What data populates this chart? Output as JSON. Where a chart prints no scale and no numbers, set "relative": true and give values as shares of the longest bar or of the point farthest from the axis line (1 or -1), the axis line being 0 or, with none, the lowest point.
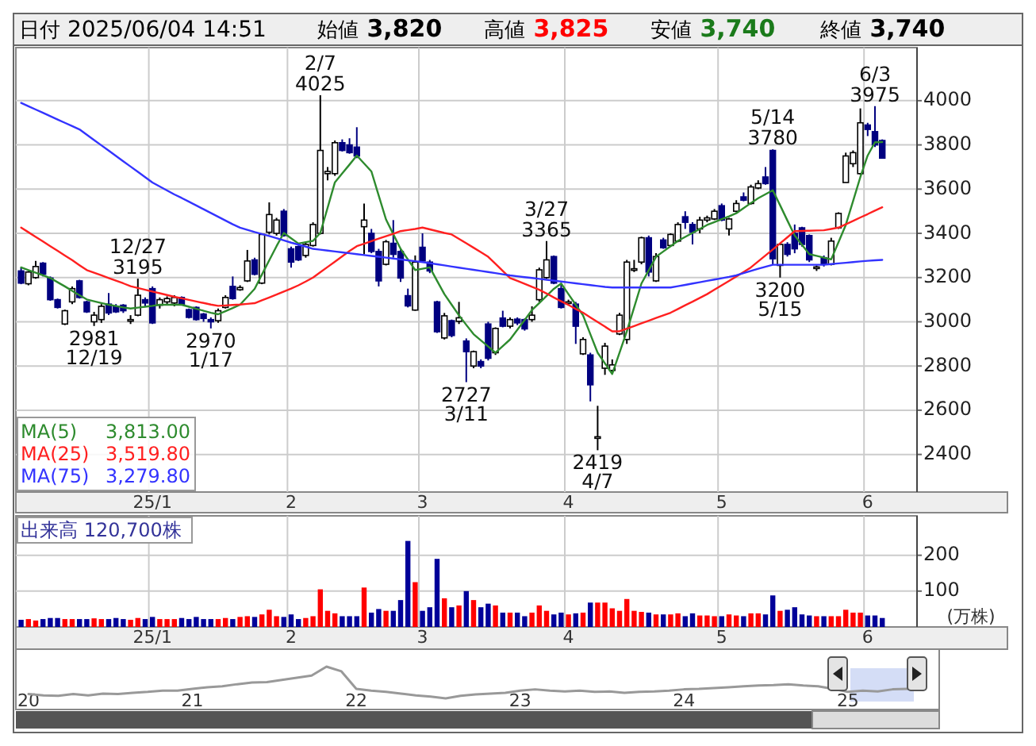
{
  "chart_data": [
    {
      "type": "candlestick",
      "colors": [
        "#000080",
        "#ffffff",
        "#ffffff",
        "#000080",
        "#000080",
        "#000080",
        "#ffffff",
        "#ffffff",
        "#000080",
        "#000080",
        "#ffffff",
        "#ffffff",
        "#000080",
        "#000080",
        "#000080",
        "#ffffff",
        "#ffffff",
        "#000080",
        "#000080",
        "#ffffff",
        "#ffffff",
        "#ffffff",
        "#000080",
        "#000080",
        "#000080",
        "#000080",
        "#000080",
        "#ffffff",
        "#ffffff",
        "#000080",
        "#ffffff",
        "#ffffff",
        "#000080",
        "#ffffff",
        "#ffffff",
        "#ffffff",
        "#000080",
        "#000080",
        "#000080",
        "#ffffff",
        "#ffffff",
        "#ffffff",
        "#ffffff",
        "#ffffff",
        "#000080",
        "#000080",
        "#000080",
        "#ffffff",
        "#000080",
        "#000080",
        "#ffffff",
        "#000080",
        "#000080",
        "#000080",
        "#ffffff",
        "#000080",
        "#000080",
        "#000080",
        "#ffffff",
        "#000080",
        "#ffffff",
        "#000080",
        "#ffffff",
        "#000080",
        "#000080",
        "#ffffff",
        "#000080",
        "#ffffff",
        "#000080",
        "#000080",
        "#ffffff",
        "#ffffff",
        "#ffffff",
        "#000080",
        "#000080",
        "#ffffff",
        "#000080",
        "#ffffff",
        "#000080",
        "#ffffff",
        "#ffffff",
        "#ffffff",
        "#ffffff",
        "#ffffff",
        "#ffffff",
        "#ffffff",
        "#000080",
        "#ffffff",
        "#000080",
        "#ffffff",
        "#ffffff",
        "#000080",
        "#000080",
        "#ffffff",
        "#ffffff",
        "#ffffff",
        "#000080",
        "#ffffff",
        "#ffffff",
        "#000080",
        "#ffffff",
        "#ffffff",
        "#000080",
        "#000080",
        "#ffffff",
        "#000080",
        "#000080",
        "#000080",
        "#000080",
        "#ffffff",
        "#000080",
        "#ffffff",
        "#ffffff",
        "#ffffff",
        "#ffffff",
        "#ffffff",
        "#000080",
        "#000080",
        "#000080"
      ],
      "legend": "bottom left",
      "grid": true,
      "ylim": [
        2230,
        4240
      ],
      "yticks": [
        2400,
        2600,
        2800,
        3000,
        3200,
        3400,
        3600,
        3800,
        4000
      ],
      "categories": [
        null,
        null,
        null,
        null,
        null,
        null,
        null,
        null,
        null,
        null,
        null,
        null,
        null,
        null,
        null,
        null,
        null,
        null,
        "25/1",
        null,
        null,
        null,
        null,
        null,
        null,
        null,
        null,
        null,
        null,
        null,
        null,
        null,
        null,
        null,
        null,
        null,
        null,
        "2",
        null,
        null,
        null,
        null,
        null,
        null,
        null,
        null,
        null,
        null,
        null,
        null,
        null,
        null,
        null,
        null,
        null,
        "3",
        null,
        null,
        null,
        null,
        null,
        null,
        null,
        null,
        null,
        null,
        null,
        null,
        null,
        null,
        null,
        null,
        null,
        null,
        null,
        "4",
        null,
        null,
        null,
        null,
        null,
        null,
        null,
        null,
        null,
        null,
        null,
        null,
        null,
        null,
        null,
        null,
        null,
        null,
        null,
        null,
        "5",
        null,
        null,
        null,
        null,
        null,
        null,
        null,
        null,
        null,
        null,
        null,
        null,
        null,
        null,
        null,
        null,
        null,
        null,
        null,
        "6",
        null,
        null
      ],
      "ohlc": [
        [
          3230,
          3245,
          3170,
          3175
        ],
        [
          3172,
          3230,
          3165,
          3225
        ],
        [
          3200,
          3275,
          3195,
          3250
        ],
        [
          3265,
          3270,
          3205,
          3215
        ],
        [
          3198,
          3205,
          3095,
          3100
        ],
        [
          3100,
          3105,
          3060,
          3065
        ],
        [
          2990,
          3055,
          2985,
          3050
        ],
        [
          3090,
          3160,
          3080,
          3150
        ],
        [
          3185,
          3190,
          3105,
          3110
        ],
        [
          3090,
          3095,
          3040,
          3045
        ],
        [
          3000,
          3045,
          2981,
          3030
        ],
        [
          3010,
          3080,
          2995,
          3070
        ],
        [
          3080,
          3130,
          3030,
          3040
        ],
        [
          3070,
          3080,
          3040,
          3045
        ],
        [
          3075,
          3080,
          3040,
          3050
        ],
        [
          3005,
          3030,
          2990,
          3010
        ],
        [
          3030,
          3195,
          3025,
          3120
        ],
        [
          3100,
          3110,
          3070,
          3085
        ],
        [
          3150,
          3160,
          2990,
          2995
        ],
        [
          3075,
          3110,
          3060,
          3100
        ],
        [
          3090,
          3115,
          3080,
          3105
        ],
        [
          3085,
          3120,
          3070,
          3110
        ],
        [
          3110,
          3115,
          3075,
          3080
        ],
        [
          3055,
          3060,
          3015,
          3020
        ],
        [
          3065,
          3070,
          3005,
          3010
        ],
        [
          3035,
          3040,
          3000,
          3015
        ],
        [
          3010,
          3020,
          2970,
          3000
        ],
        [
          3005,
          3060,
          2995,
          3050
        ],
        [
          3065,
          3120,
          3060,
          3110
        ],
        [
          3160,
          3205,
          3100,
          3105
        ],
        [
          3145,
          3165,
          3140,
          3155
        ],
        [
          3185,
          3325,
          3180,
          3275
        ],
        [
          3280,
          3290,
          3210,
          3215
        ],
        [
          3175,
          3400,
          3170,
          3395
        ],
        [
          3405,
          3540,
          3395,
          3485
        ],
        [
          3400,
          3470,
          3390,
          3460
        ],
        [
          3500,
          3510,
          3385,
          3390
        ],
        [
          3330,
          3340,
          3245,
          3270
        ],
        [
          3340,
          3345,
          3275,
          3280
        ],
        [
          3300,
          3360,
          3290,
          3350
        ],
        [
          3345,
          3450,
          3340,
          3440
        ],
        [
          3400,
          4025,
          3395,
          3775
        ],
        [
          3670,
          3700,
          3640,
          3680
        ],
        [
          3670,
          3820,
          3660,
          3810
        ],
        [
          3810,
          3825,
          3770,
          3775
        ],
        [
          3800,
          3830,
          3760,
          3765
        ],
        [
          3790,
          3880,
          3740,
          3750
        ],
        [
          3430,
          3535,
          3305,
          3460
        ],
        [
          3400,
          3420,
          3310,
          3318
        ],
        [
          3318,
          3330,
          3160,
          3185
        ],
        [
          3260,
          3370,
          3255,
          3362
        ],
        [
          3355,
          3460,
          3290,
          3305
        ],
        [
          3318,
          3330,
          3180,
          3198
        ],
        [
          3118,
          3150,
          3065,
          3072
        ],
        [
          3053,
          3300,
          3050,
          3270
        ],
        [
          3337,
          3400,
          3270,
          3275
        ],
        [
          3270,
          3280,
          3220,
          3230
        ],
        [
          3090,
          3095,
          2950,
          2955
        ],
        [
          2927,
          3040,
          2920,
          3027
        ],
        [
          3005,
          3010,
          2930,
          2938
        ],
        [
          3002,
          3090,
          2990,
          3018
        ],
        [
          2913,
          2925,
          2727,
          2865
        ],
        [
          2800,
          2870,
          2790,
          2865
        ],
        [
          2820,
          2830,
          2790,
          2800
        ],
        [
          2990,
          3000,
          2825,
          2835
        ],
        [
          2860,
          2975,
          2850,
          2970
        ],
        [
          3017,
          3050,
          2975,
          2980
        ],
        [
          2980,
          3020,
          2970,
          3010
        ],
        [
          3012,
          3020,
          2985,
          2995
        ],
        [
          3010,
          3015,
          2960,
          2968
        ],
        [
          3010,
          3070,
          3000,
          3030
        ],
        [
          3100,
          3245,
          3090,
          3235
        ],
        [
          3200,
          3365,
          3195,
          3280
        ],
        [
          3295,
          3300,
          3170,
          3175
        ],
        [
          3150,
          3170,
          3060,
          3065
        ],
        [
          3085,
          3100,
          3075,
          3090
        ],
        [
          3080,
          3090,
          2900,
          2980
        ],
        [
          2855,
          2930,
          2850,
          2920
        ],
        [
          2850,
          2860,
          2640,
          2715
        ],
        [
          2475,
          2620,
          2419,
          2480
        ],
        [
          2790,
          2905,
          2760,
          2890
        ],
        [
          2780,
          2830,
          2770,
          2805
        ],
        [
          2945,
          3040,
          2940,
          3030
        ],
        [
          2920,
          3280,
          2900,
          3270
        ],
        [
          3235,
          3280,
          3225,
          3240
        ],
        [
          3270,
          3385,
          3260,
          3380
        ],
        [
          3380,
          3390,
          3205,
          3225
        ],
        [
          3185,
          3310,
          3180,
          3295
        ],
        [
          3370,
          3380,
          3330,
          3335
        ],
        [
          3345,
          3400,
          3340,
          3395
        ],
        [
          3365,
          3450,
          3360,
          3440
        ],
        [
          3475,
          3500,
          3420,
          3450
        ],
        [
          3440,
          3450,
          3350,
          3405
        ],
        [
          3420,
          3475,
          3400,
          3460
        ],
        [
          3460,
          3480,
          3450,
          3470
        ],
        [
          3465,
          3510,
          3460,
          3500
        ],
        [
          3525,
          3535,
          3455,
          3460
        ],
        [
          3420,
          3470,
          3390,
          3465
        ],
        [
          3500,
          3550,
          3495,
          3535
        ],
        [
          3565,
          3585,
          3545,
          3550
        ],
        [
          3535,
          3620,
          3530,
          3610
        ],
        [
          3605,
          3640,
          3600,
          3625
        ],
        [
          3655,
          3700,
          3620,
          3625
        ],
        [
          3775,
          3780,
          3260,
          3285
        ],
        [
          3255,
          3355,
          3200,
          3350
        ],
        [
          3350,
          3360,
          3295,
          3305
        ],
        [
          3400,
          3440,
          3310,
          3330
        ],
        [
          3425,
          3430,
          3340,
          3350
        ],
        [
          3390,
          3395,
          3270,
          3280
        ],
        [
          3245,
          3255,
          3230,
          3248
        ],
        [
          3290,
          3300,
          3250,
          3260
        ],
        [
          3260,
          3380,
          3255,
          3365
        ],
        [
          3425,
          3495,
          3420,
          3490
        ],
        [
          3630,
          3765,
          3630,
          3750
        ],
        [
          3715,
          3775,
          3700,
          3765
        ],
        [
          3670,
          3965,
          3665,
          3900
        ],
        [
          3890,
          3900,
          3840,
          3870
        ],
        [
          3860,
          3975,
          3790,
          3800
        ],
        [
          3820,
          3825,
          3740,
          3740
        ]
      ],
      "series": [
        {
          "type": "line",
          "name": "MA(5) 3,813.00",
          "color": "#2e8b2e",
          "values": [
            3246,
            3234,
            3222,
            3210,
            3198,
            3179,
            3160,
            3140,
            3120,
            3101,
            3093,
            3085,
            3077,
            3071,
            3065,
            3060,
            3064,
            3068,
            3072,
            3077,
            3077,
            3077,
            3077,
            3068,
            3059,
            3050,
            3041,
            3034,
            3048,
            3062,
            3077,
            3113,
            3149,
            3214,
            3278,
            3342,
            3402,
            3378,
            3354,
            3360,
            3366,
            3402,
            3516,
            3631,
            3671,
            3711,
            3752,
            3716,
            3680,
            3571,
            3463,
            3396,
            3330,
            3282,
            3234,
            3240,
            3246,
            3185,
            3125,
            3077,
            3029,
            2986,
            2944,
            2916,
            2888,
            2860,
            2890,
            2920,
            2964,
            3008,
            3053,
            3085,
            3117,
            3149,
            3173,
            3125,
            3077,
            3029,
            2944,
            2860,
            2812,
            2764,
            2860,
            2957,
            3065,
            3173,
            3233,
            3294,
            3318,
            3342,
            3366,
            3384,
            3402,
            3420,
            3438,
            3451,
            3464,
            3477,
            3491,
            3514,
            3537,
            3559,
            3577,
            3595,
            3527,
            3458,
            3390,
            3348,
            3306,
            3298,
            3290,
            3282,
            3360,
            3438,
            3546,
            3655,
            3752,
            3812,
            3813
          ]
        },
        {
          "type": "line",
          "name": "MA(25) 3,519.80",
          "color": "#ff2020",
          "values": [
            3426,
            3405,
            3384,
            3363,
            3342,
            3321,
            3300,
            3279,
            3256,
            3234,
            3222,
            3210,
            3198,
            3186,
            3174,
            3161,
            3153,
            3145,
            3137,
            3129,
            3121,
            3113,
            3106,
            3099,
            3092,
            3085,
            3078,
            3072,
            3074,
            3076,
            3078,
            3081,
            3084,
            3097,
            3110,
            3123,
            3137,
            3150,
            3165,
            3182,
            3200,
            3224,
            3248,
            3272,
            3296,
            3320,
            3342,
            3353,
            3365,
            3376,
            3387,
            3398,
            3410,
            3415,
            3420,
            3426,
            3418,
            3410,
            3402,
            3395,
            3375,
            3355,
            3335,
            3315,
            3294,
            3262,
            3230,
            3198,
            3185,
            3172,
            3158,
            3145,
            3128,
            3110,
            3093,
            3076,
            3058,
            3041,
            3020,
            2999,
            2978,
            2957,
            2957,
            2969,
            2981,
            2993,
            3005,
            3017,
            3029,
            3041,
            3058,
            3075,
            3091,
            3108,
            3125,
            3145,
            3165,
            3185,
            3205,
            3225,
            3246,
            3273,
            3300,
            3327,
            3355,
            3382,
            3410,
            3411,
            3412,
            3413,
            3414,
            3420,
            3426,
            3441,
            3456,
            3472,
            3487,
            3503,
            3518
          ]
        },
        {
          "type": "line",
          "name": "MA(75) 3,279.80",
          "color": "#3333ff",
          "values": [
            3990,
            3975,
            3960,
            3945,
            3930,
            3915,
            3900,
            3885,
            3870,
            3846,
            3822,
            3798,
            3774,
            3750,
            3726,
            3702,
            3678,
            3654,
            3630,
            3612,
            3594,
            3576,
            3560,
            3543,
            3526,
            3509,
            3492,
            3475,
            3458,
            3441,
            3426,
            3416,
            3406,
            3397,
            3388,
            3378,
            3368,
            3358,
            3349,
            3340,
            3330,
            3326,
            3322,
            3318,
            3314,
            3310,
            3306,
            3302,
            3298,
            3294,
            3290,
            3286,
            3282,
            3278,
            3274,
            3270,
            3265,
            3260,
            3255,
            3250,
            3245,
            3240,
            3235,
            3230,
            3225,
            3220,
            3215,
            3210,
            3206,
            3202,
            3198,
            3194,
            3190,
            3186,
            3182,
            3178,
            3174,
            3170,
            3166,
            3162,
            3158,
            3155,
            3155,
            3155,
            3155,
            3155,
            3155,
            3155,
            3155,
            3155,
            3161,
            3167,
            3173,
            3179,
            3185,
            3191,
            3197,
            3203,
            3210,
            3220,
            3230,
            3240,
            3249,
            3258,
            3258,
            3258,
            3258,
            3258,
            3258,
            3258,
            3258,
            3261,
            3264,
            3267,
            3270,
            3273,
            3276,
            3278,
            3280
          ]
        }
      ],
      "annotations": [
        "日付 2025/06/04 14:51",
        "始値 3,820",
        "高値 3,825",
        "安値 3,740",
        "終値 3,740",
        {
          "text": "2981\n12/19",
          "y": 2981
        },
        {
          "text": "12/27\n3195",
          "y": 3195
        },
        {
          "text": "2970\n1/17",
          "y": 2970
        },
        {
          "text": "2/7\n4025",
          "y": 4025
        },
        {
          "text": "2727\n3/11",
          "y": 2727
        },
        {
          "text": "3/27\n3365",
          "y": 3365
        },
        {
          "text": "2419\n4/7",
          "y": 2419
        },
        {
          "text": "5/14\n3780",
          "y": 3780
        },
        {
          "text": "3200\n5/15",
          "y": 3200
        },
        {
          "text": "6/3\n3975",
          "y": 3975
        }
      ]
    },
    {
      "type": "bar",
      "title": "出来高 120,700株",
      "ylabel": "(万株)",
      "grid": true,
      "ylim": [
        0,
        310
      ],
      "yticks": [
        100,
        200
      ],
      "categories": [
        null,
        null,
        null,
        null,
        null,
        null,
        null,
        null,
        null,
        null,
        null,
        null,
        null,
        null,
        null,
        null,
        null,
        null,
        "25/1",
        null,
        null,
        null,
        null,
        null,
        null,
        null,
        null,
        null,
        null,
        null,
        null,
        null,
        null,
        null,
        null,
        null,
        null,
        "2",
        null,
        null,
        null,
        null,
        null,
        null,
        null,
        null,
        null,
        null,
        null,
        null,
        null,
        null,
        null,
        null,
        null,
        "3",
        null,
        null,
        null,
        null,
        null,
        null,
        null,
        null,
        null,
        null,
        null,
        null,
        null,
        null,
        null,
        null,
        null,
        null,
        null,
        "4",
        null,
        null,
        null,
        null,
        null,
        null,
        null,
        null,
        null,
        null,
        null,
        null,
        null,
        null,
        null,
        null,
        null,
        null,
        null,
        null,
        "5",
        null,
        null,
        null,
        null,
        null,
        null,
        null,
        null,
        null,
        null,
        null,
        null,
        null,
        null,
        null,
        null,
        null,
        null,
        null,
        "6",
        null,
        null
      ],
      "values": [
        20,
        22,
        18,
        22,
        25,
        25,
        22,
        22,
        22,
        22,
        24,
        22,
        22,
        25,
        22,
        20,
        25,
        22,
        28,
        22,
        22,
        22,
        25,
        22,
        28,
        22,
        22,
        22,
        25,
        22,
        28,
        30,
        28,
        35,
        48,
        30,
        28,
        35,
        22,
        25,
        30,
        105,
        45,
        38,
        30,
        30,
        30,
        110,
        40,
        50,
        45,
        45,
        75,
        240,
        125,
        45,
        55,
        190,
        80,
        55,
        60,
        100,
        75,
        55,
        65,
        60,
        40,
        40,
        40,
        30,
        40,
        60,
        45,
        35,
        40,
        35,
        38,
        40,
        68,
        68,
        68,
        52,
        45,
        78,
        45,
        42,
        40,
        35,
        35,
        35,
        38,
        30,
        38,
        32,
        32,
        30,
        30,
        35,
        32,
        30,
        38,
        38,
        35,
        88,
        45,
        48,
        55,
        35,
        32,
        30,
        30,
        30,
        30,
        48,
        40,
        40,
        32,
        32,
        25
      ],
      "colors": [
        "#000099",
        "#ff0000",
        "#ff0000",
        "#000099",
        "#000099",
        "#000099",
        "#ff0000",
        "#ff0000",
        "#000099",
        "#000099",
        "#ff0000",
        "#ff0000",
        "#000099",
        "#000099",
        "#000099",
        "#ff0000",
        "#ff0000",
        "#000099",
        "#000099",
        "#ff0000",
        "#ff0000",
        "#ff0000",
        "#000099",
        "#000099",
        "#000099",
        "#000099",
        "#000099",
        "#ff0000",
        "#ff0000",
        "#000099",
        "#ff0000",
        "#ff0000",
        "#000099",
        "#ff0000",
        "#ff0000",
        "#ff0000",
        "#000099",
        "#000099",
        "#000099",
        "#ff0000",
        "#ff0000",
        "#ff0000",
        "#ff0000",
        "#ff0000",
        "#000099",
        "#000099",
        "#000099",
        "#ff0000",
        "#000099",
        "#000099",
        "#ff0000",
        "#000099",
        "#000099",
        "#000099",
        "#ff0000",
        "#000099",
        "#000099",
        "#000099",
        "#ff0000",
        "#000099",
        "#ff0000",
        "#000099",
        "#ff0000",
        "#000099",
        "#000099",
        "#ff0000",
        "#000099",
        "#ff0000",
        "#000099",
        "#000099",
        "#ff0000",
        "#ff0000",
        "#ff0000",
        "#000099",
        "#000099",
        "#ff0000",
        "#000099",
        "#ff0000",
        "#000099",
        "#ff0000",
        "#ff0000",
        "#ff0000",
        "#ff0000",
        "#ff0000",
        "#ff0000",
        "#ff0000",
        "#000099",
        "#ff0000",
        "#000099",
        "#ff0000",
        "#ff0000",
        "#000099",
        "#000099",
        "#ff0000",
        "#ff0000",
        "#ff0000",
        "#000099",
        "#ff0000",
        "#ff0000",
        "#000099",
        "#ff0000",
        "#ff0000",
        "#000099",
        "#000099",
        "#ff0000",
        "#000099",
        "#000099",
        "#000099",
        "#000099",
        "#ff0000",
        "#000099",
        "#ff0000",
        "#ff0000",
        "#ff0000",
        "#ff0000",
        "#ff0000",
        "#000099",
        "#000099",
        "#000099"
      ]
    },
    {
      "type": "line",
      "relative": true,
      "tick_labels": "x",
      "color": "#999999",
      "categories": [
        "20",
        null,
        null,
        null,
        null,
        null,
        null,
        null,
        null,
        null,
        null,
        "21",
        null,
        null,
        null,
        null,
        null,
        null,
        null,
        null,
        null,
        null,
        "22",
        null,
        null,
        null,
        null,
        null,
        null,
        null,
        null,
        null,
        null,
        "23",
        null,
        null,
        null,
        null,
        null,
        null,
        null,
        null,
        null,
        null,
        "24",
        null,
        null,
        null,
        null,
        null,
        null,
        null,
        null,
        null,
        null,
        "25",
        null,
        null,
        null,
        null
      ],
      "values": [
        0.36,
        0.33,
        0.32,
        0.36,
        0.33,
        0.37,
        0.36,
        0.39,
        0.41,
        0.44,
        0.44,
        0.48,
        0.52,
        0.54,
        0.59,
        0.63,
        0.64,
        0.69,
        0.74,
        0.79,
        1,
        0.89,
        0.48,
        0.44,
        0.41,
        0.37,
        0.33,
        0.3,
        0.26,
        0.32,
        0.35,
        0.37,
        0.39,
        0.44,
        0.47,
        0.44,
        0.42,
        0.44,
        0.41,
        0.42,
        0.39,
        0.41,
        0.42,
        0.44,
        0.47,
        0.48,
        0.5,
        0.52,
        0.54,
        0.56,
        0.57,
        0.59,
        0.56,
        0.54,
        0.48,
        0.41,
        0.44,
        0.42,
        0.47,
        0.48
      ]
    }
  ]
}
